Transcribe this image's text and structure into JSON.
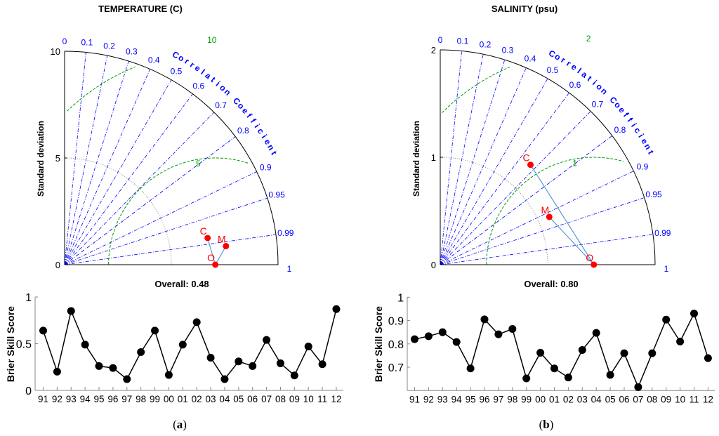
{
  "chart_data": [
    {
      "type": "taylor",
      "title": "TEMPERATURE (C)",
      "ylabel": "Standard deviation",
      "angular_label": "Correlation Coefficient",
      "std_max": 10,
      "std_ticks": [
        "0",
        "5",
        "10"
      ],
      "std_tick_values": [
        0,
        5,
        10
      ],
      "correlation_ticks": [
        "0",
        "0.1",
        "0.2",
        "0.3",
        "0.4",
        "0.5",
        "0.6",
        "0.7",
        "0.8",
        "0.9",
        "0.95",
        "0.99",
        "1"
      ],
      "correlation_values": [
        0,
        0.1,
        0.2,
        0.3,
        0.4,
        0.5,
        0.6,
        0.7,
        0.8,
        0.9,
        0.95,
        0.99,
        1
      ],
      "rms_contours": [
        5,
        10
      ],
      "rms_labels": [
        "5",
        "10"
      ],
      "reference_std_arc": 5,
      "points": [
        {
          "label": "O",
          "x": 7.06,
          "y": 0.0
        },
        {
          "label": "C",
          "x": 6.7,
          "y": 1.25
        },
        {
          "label": "M",
          "x": 7.56,
          "y": 0.87
        }
      ],
      "overall_label": "Overall: 0.48"
    },
    {
      "type": "taylor",
      "title": "SALINITY (psu)",
      "ylabel": "Standard deviation",
      "angular_label": "Correlation Coefficient",
      "std_max": 2,
      "std_ticks": [
        "0",
        "1",
        "2"
      ],
      "std_tick_values": [
        0,
        1,
        2
      ],
      "correlation_ticks": [
        "0",
        "0.1",
        "0.2",
        "0.3",
        "0.4",
        "0.5",
        "0.6",
        "0.7",
        "0.8",
        "0.9",
        "0.95",
        "0.99",
        "1"
      ],
      "correlation_values": [
        0,
        0.1,
        0.2,
        0.3,
        0.4,
        0.5,
        0.6,
        0.7,
        0.8,
        0.9,
        0.95,
        0.99,
        1
      ],
      "rms_contours": [
        1,
        2
      ],
      "rms_labels": [
        "1",
        "2"
      ],
      "reference_std_arc": 1,
      "points": [
        {
          "label": "O",
          "x": 1.43,
          "y": 0.0
        },
        {
          "label": "C",
          "x": 0.84,
          "y": 0.93
        },
        {
          "label": "M",
          "x": 1.015,
          "y": 0.445
        }
      ],
      "overall_label": "Overall: 0.80"
    },
    {
      "type": "line",
      "title": "",
      "ylabel": "Brier Skill Score",
      "xlabel": "",
      "ylim": [
        0,
        1
      ],
      "yticks": [
        0,
        0.5,
        1
      ],
      "ytick_labels": [
        "0",
        "0.5",
        "1"
      ],
      "categories": [
        "91",
        "92",
        "93",
        "94",
        "95",
        "96",
        "97",
        "98",
        "99",
        "00",
        "01",
        "02",
        "03",
        "04",
        "05",
        "06",
        "07",
        "08",
        "09",
        "10",
        "11",
        "12"
      ],
      "values": [
        0.64,
        0.2,
        0.85,
        0.49,
        0.26,
        0.24,
        0.12,
        0.41,
        0.64,
        0.165,
        0.49,
        0.73,
        0.35,
        0.12,
        0.31,
        0.26,
        0.54,
        0.29,
        0.16,
        0.47,
        0.28,
        0.87
      ],
      "panel_label": "a"
    },
    {
      "type": "line",
      "title": "",
      "ylabel": "Brier Skill Score",
      "xlabel": "",
      "ylim": [
        0.6,
        1
      ],
      "yticks": [
        0.7,
        0.8,
        0.9,
        1
      ],
      "ytick_labels": [
        "0.7",
        "0.8",
        "0.9",
        "1"
      ],
      "categories": [
        "91",
        "92",
        "93",
        "94",
        "95",
        "96",
        "97",
        "98",
        "99",
        "00",
        "01",
        "02",
        "03",
        "04",
        "05",
        "06",
        "07",
        "08",
        "09",
        "10",
        "11",
        "12"
      ],
      "values": [
        0.82,
        0.833,
        0.85,
        0.808,
        0.695,
        0.905,
        0.841,
        0.864,
        0.652,
        0.762,
        0.695,
        0.656,
        0.774,
        0.847,
        0.667,
        0.76,
        0.615,
        0.76,
        0.904,
        0.81,
        0.93,
        0.739
      ],
      "panel_label": "b"
    }
  ],
  "colors": {
    "correlation": "#0000ff",
    "rms": "#009900",
    "ref_arc": "#888888",
    "points": "#ff0000",
    "connector": "#5b9bd5",
    "line": "#000000"
  }
}
